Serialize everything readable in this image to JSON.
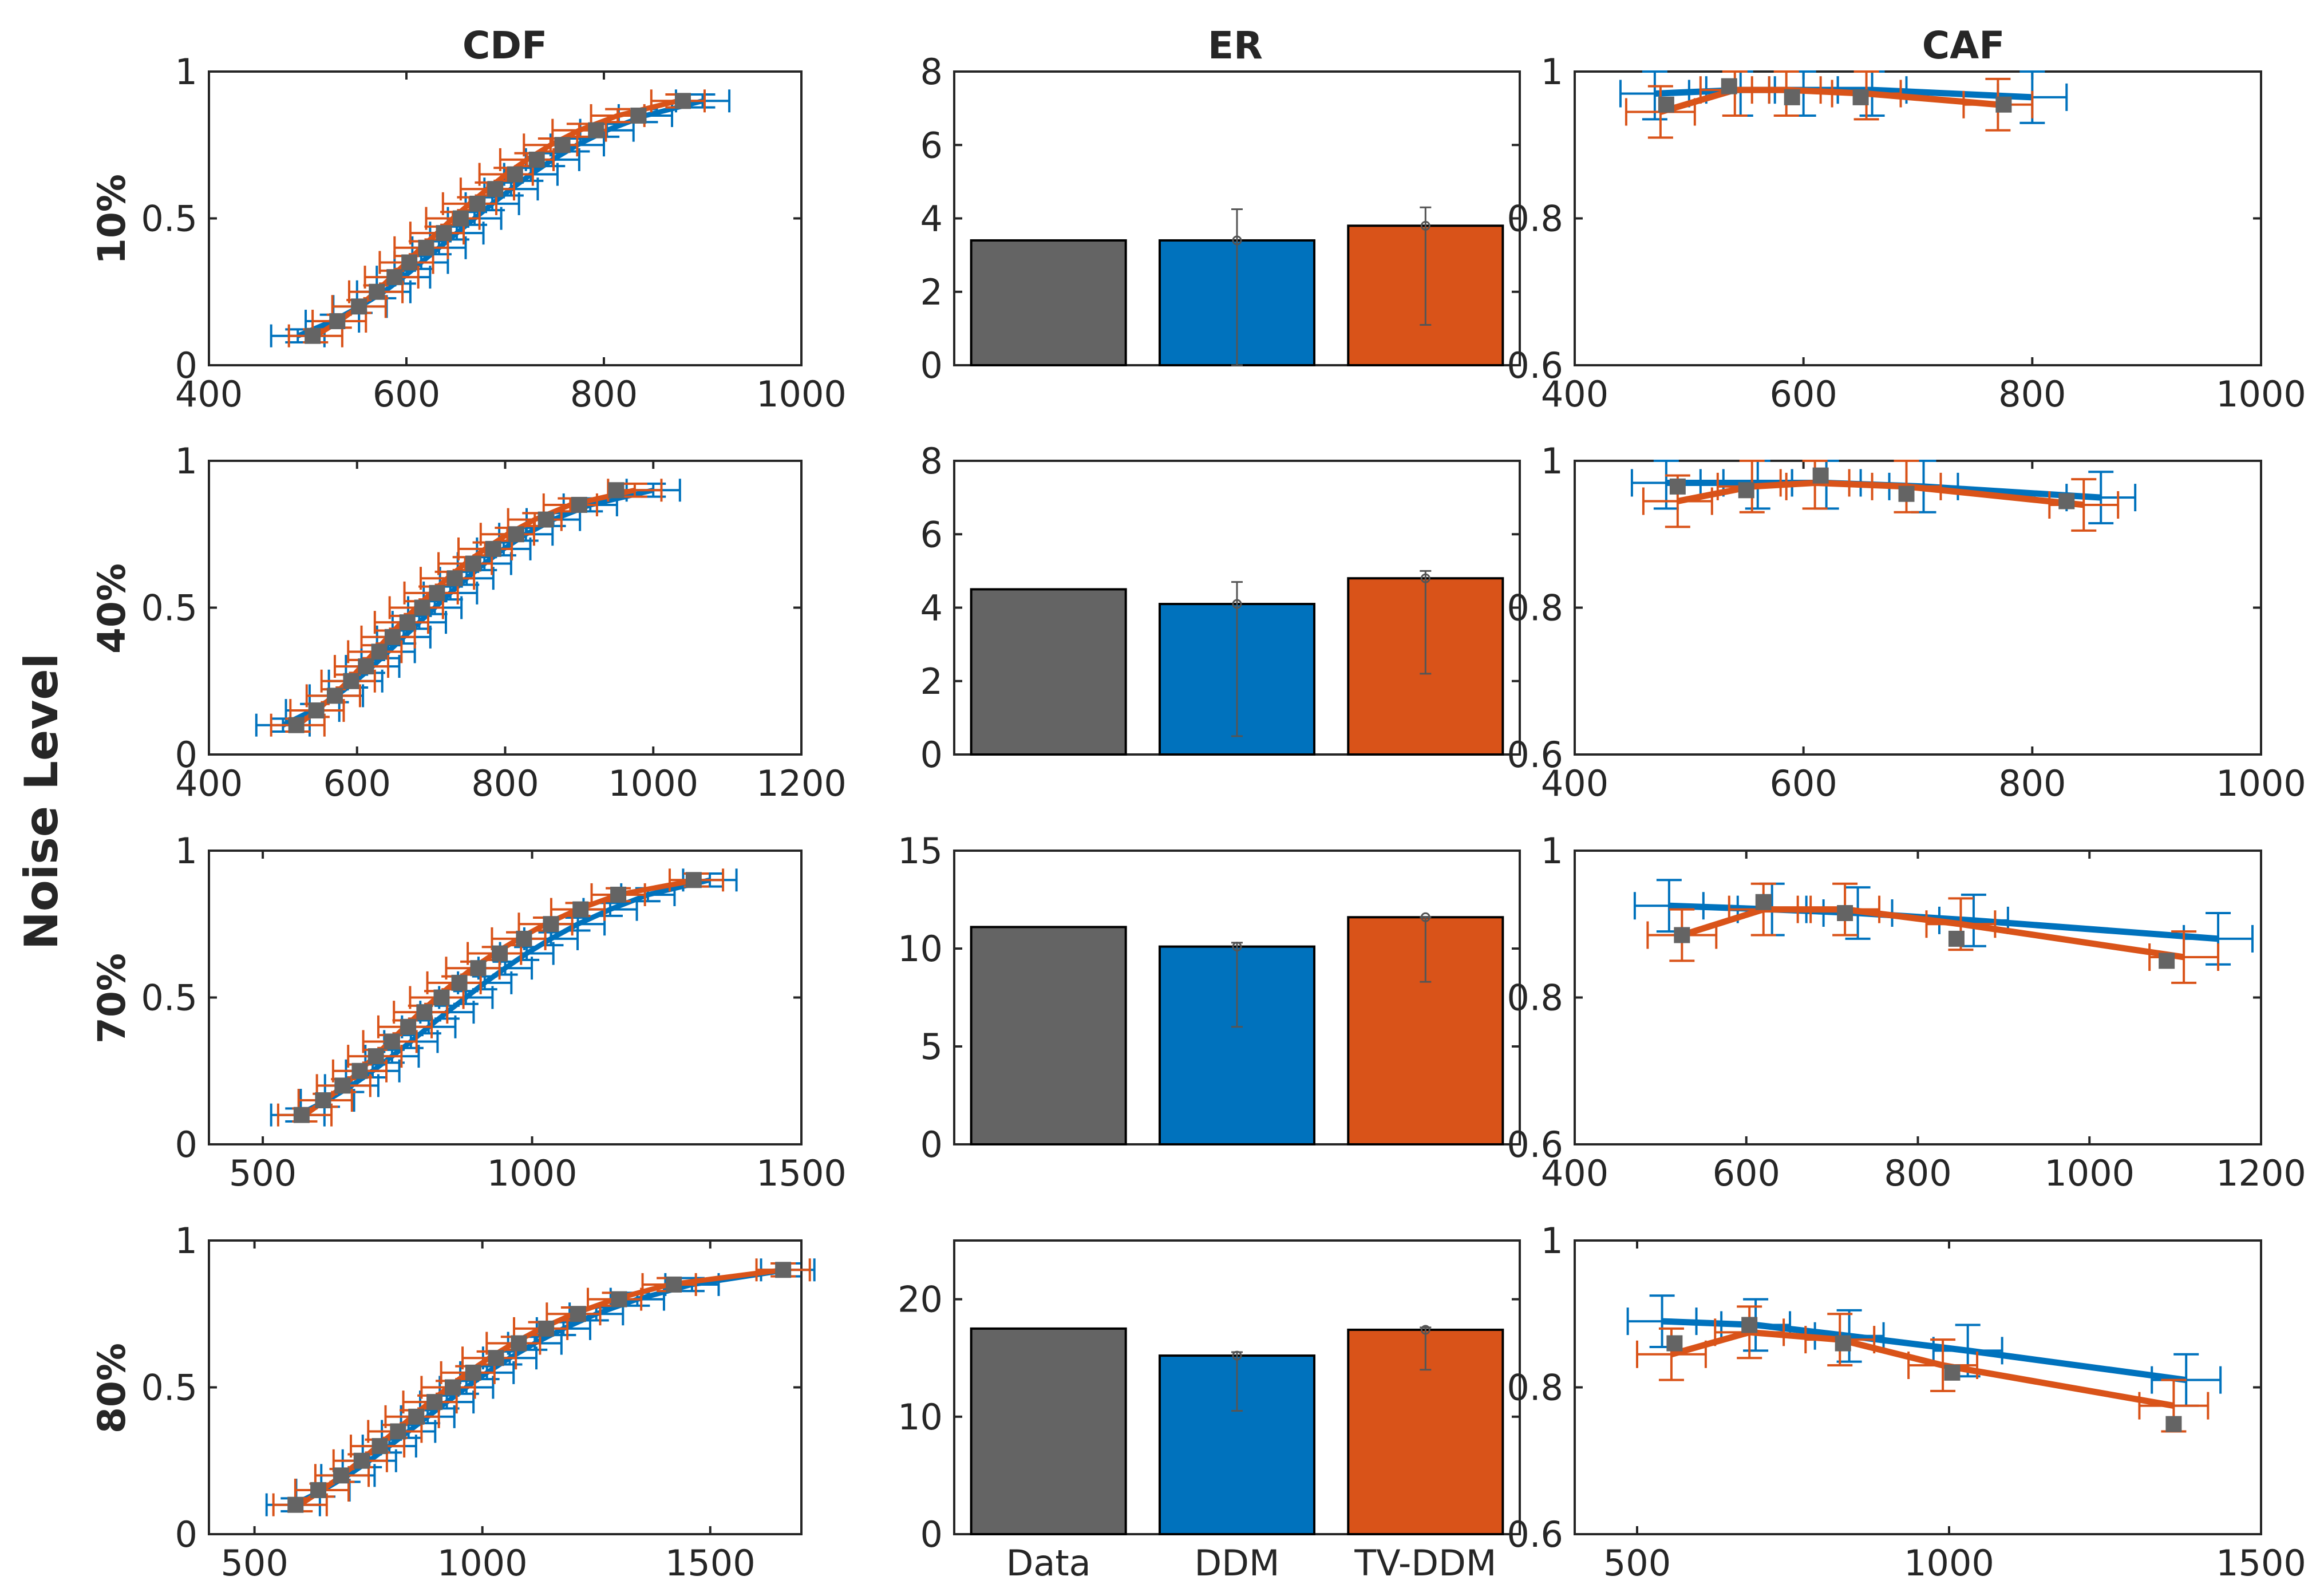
{
  "figure": {
    "ylabel": "Noise Level",
    "col_titles": [
      "CDF",
      "ER",
      "CAF"
    ],
    "row_labels": [
      "10%",
      "40%",
      "70%",
      "80%"
    ],
    "colors": {
      "data": "#646464",
      "ddm": "#0072BD",
      "tvddm": "#D95319",
      "axis": "#262626"
    }
  },
  "chart_data": [
    {
      "panel": "cdf-10",
      "type": "line",
      "title": "CDF",
      "row_label": "10%",
      "xlim": [
        400,
        1000
      ],
      "xticks": [
        400,
        600,
        800,
        1000
      ],
      "ylim": [
        0,
        1
      ],
      "yticks": [
        0,
        0.5,
        1
      ],
      "ytick_labels": [
        "0",
        "0.5",
        "1"
      ],
      "series": [
        {
          "name": "Data",
          "x": [
            505,
            530,
            552,
            570,
            588,
            603,
            620,
            638,
            655,
            672,
            690,
            710,
            732,
            758,
            792,
            835,
            880
          ],
          "y": [
            0.1,
            0.15,
            0.2,
            0.25,
            0.3,
            0.35,
            0.4,
            0.45,
            0.5,
            0.55,
            0.6,
            0.65,
            0.7,
            0.75,
            0.8,
            0.85,
            0.9
          ]
        },
        {
          "name": "DDM",
          "x": [
            490,
            525,
            553,
            577,
            597,
            615,
            633,
            651,
            669,
            687,
            706,
            726,
            748,
            773,
            803,
            842,
            900
          ],
          "y": [
            0.1,
            0.15,
            0.2,
            0.25,
            0.3,
            0.35,
            0.4,
            0.45,
            0.5,
            0.55,
            0.6,
            0.65,
            0.7,
            0.75,
            0.8,
            0.85,
            0.9
          ]
        },
        {
          "name": "TV-DDM",
          "x": [
            508,
            532,
            552,
            569,
            585,
            600,
            615,
            631,
            647,
            664,
            682,
            701,
            722,
            746,
            775,
            814,
            875
          ],
          "y": [
            0.1,
            0.15,
            0.2,
            0.25,
            0.3,
            0.35,
            0.4,
            0.45,
            0.5,
            0.55,
            0.6,
            0.65,
            0.7,
            0.75,
            0.8,
            0.85,
            0.9
          ]
        }
      ]
    },
    {
      "panel": "er-10",
      "type": "bar",
      "title": "ER",
      "row_label": "10%",
      "ylim": [
        0,
        8
      ],
      "yticks": [
        0,
        2,
        4,
        6,
        8
      ],
      "categories": [
        "Data",
        "DDM",
        "TV-DDM"
      ],
      "values": [
        3.4,
        3.4,
        3.8
      ],
      "error_low": [
        null,
        0.0,
        1.1
      ],
      "error_high": [
        null,
        4.25,
        4.3
      ]
    },
    {
      "panel": "caf-10",
      "type": "line",
      "title": "CAF",
      "row_label": "10%",
      "xlim": [
        400,
        1000
      ],
      "xticks": [
        400,
        600,
        800,
        1000
      ],
      "ylim": [
        0.6,
        1
      ],
      "yticks": [
        0.6,
        0.8,
        1
      ],
      "ytick_labels": [
        "0.6",
        "0.8",
        "1"
      ],
      "series": [
        {
          "name": "Data",
          "x": [
            480,
            535,
            590,
            650,
            775
          ],
          "y": [
            0.955,
            0.98,
            0.965,
            0.965,
            0.955
          ]
        },
        {
          "name": "DDM",
          "x": [
            470,
            545,
            600,
            660,
            800
          ],
          "y": [
            0.97,
            0.975,
            0.975,
            0.975,
            0.965
          ]
        },
        {
          "name": "TV-DDM",
          "x": [
            475,
            540,
            585,
            655,
            770
          ],
          "y": [
            0.945,
            0.975,
            0.975,
            0.97,
            0.955
          ]
        }
      ]
    },
    {
      "panel": "cdf-40",
      "type": "line",
      "title": "CDF",
      "row_label": "40%",
      "xlim": [
        400,
        1200
      ],
      "xticks": [
        400,
        600,
        800,
        1000,
        1200
      ],
      "ylim": [
        0,
        1
      ],
      "yticks": [
        0,
        0.5,
        1
      ],
      "ytick_labels": [
        "0",
        "0.5",
        "1"
      ],
      "series": [
        {
          "name": "Data",
          "x": [
            518,
            545,
            570,
            592,
            612,
            630,
            648,
            668,
            688,
            708,
            732,
            757,
            784,
            815,
            855,
            900,
            950
          ],
          "y": [
            0.1,
            0.15,
            0.2,
            0.25,
            0.3,
            0.35,
            0.4,
            0.45,
            0.5,
            0.55,
            0.6,
            0.65,
            0.7,
            0.75,
            0.8,
            0.85,
            0.9
          ]
        },
        {
          "name": "DDM",
          "x": [
            500,
            540,
            572,
            598,
            621,
            642,
            663,
            684,
            705,
            726,
            748,
            772,
            798,
            828,
            865,
            915,
            1000
          ],
          "y": [
            0.1,
            0.15,
            0.2,
            0.25,
            0.3,
            0.35,
            0.4,
            0.45,
            0.5,
            0.55,
            0.6,
            0.65,
            0.7,
            0.75,
            0.8,
            0.85,
            0.9
          ]
        },
        {
          "name": "TV-DDM",
          "x": [
            520,
            546,
            568,
            588,
            606,
            624,
            642,
            660,
            680,
            700,
            722,
            746,
            773,
            803,
            840,
            888,
            975
          ],
          "y": [
            0.1,
            0.15,
            0.2,
            0.25,
            0.3,
            0.35,
            0.4,
            0.45,
            0.5,
            0.55,
            0.6,
            0.65,
            0.7,
            0.75,
            0.8,
            0.85,
            0.9
          ]
        }
      ]
    },
    {
      "panel": "er-40",
      "type": "bar",
      "title": "ER",
      "row_label": "40%",
      "ylim": [
        0,
        8
      ],
      "yticks": [
        0,
        2,
        4,
        6,
        8
      ],
      "categories": [
        "Data",
        "DDM",
        "TV-DDM"
      ],
      "values": [
        4.5,
        4.1,
        4.8
      ],
      "error_low": [
        null,
        0.5,
        2.2
      ],
      "error_high": [
        null,
        4.7,
        5.0
      ]
    },
    {
      "panel": "caf-40",
      "type": "line",
      "title": "CAF",
      "row_label": "40%",
      "xlim": [
        400,
        1000
      ],
      "xticks": [
        400,
        600,
        800,
        1000
      ],
      "ylim": [
        0.6,
        1
      ],
      "yticks": [
        0.6,
        0.8,
        1
      ],
      "ytick_labels": [
        "0.6",
        "0.8",
        "1"
      ],
      "series": [
        {
          "name": "Data",
          "x": [
            490,
            550,
            615,
            690,
            830
          ],
          "y": [
            0.965,
            0.96,
            0.98,
            0.955,
            0.945
          ]
        },
        {
          "name": "DDM",
          "x": [
            480,
            560,
            620,
            705,
            860
          ],
          "y": [
            0.97,
            0.97,
            0.97,
            0.965,
            0.95
          ]
        },
        {
          "name": "TV-DDM",
          "x": [
            490,
            555,
            610,
            690,
            845
          ],
          "y": [
            0.945,
            0.965,
            0.97,
            0.965,
            0.94
          ]
        }
      ]
    },
    {
      "panel": "cdf-70",
      "type": "line",
      "title": "CDF",
      "row_label": "70%",
      "xlim": [
        400,
        1500
      ],
      "xticks": [
        500,
        1000,
        1500
      ],
      "ylim": [
        0,
        1
      ],
      "yticks": [
        0,
        0.5,
        1
      ],
      "ytick_labels": [
        "0",
        "0.5",
        "1"
      ],
      "series": [
        {
          "name": "Data",
          "x": [
            572,
            612,
            648,
            680,
            710,
            740,
            770,
            800,
            832,
            865,
            900,
            940,
            985,
            1035,
            1090,
            1160,
            1300
          ],
          "y": [
            0.1,
            0.15,
            0.2,
            0.25,
            0.3,
            0.35,
            0.4,
            0.45,
            0.5,
            0.55,
            0.6,
            0.65,
            0.7,
            0.75,
            0.8,
            0.85,
            0.9
          ]
        },
        {
          "name": "DDM",
          "x": [
            565,
            620,
            665,
            704,
            740,
            775,
            808,
            842,
            877,
            912,
            950,
            990,
            1035,
            1085,
            1145,
            1215,
            1330
          ],
          "y": [
            0.1,
            0.15,
            0.2,
            0.25,
            0.3,
            0.35,
            0.4,
            0.45,
            0.5,
            0.55,
            0.6,
            0.65,
            0.7,
            0.75,
            0.8,
            0.85,
            0.9
          ]
        },
        {
          "name": "TV-DDM",
          "x": [
            578,
            616,
            650,
            680,
            708,
            736,
            764,
            793,
            823,
            855,
            890,
            930,
            975,
            1025,
            1085,
            1160,
            1305
          ],
          "y": [
            0.1,
            0.15,
            0.2,
            0.25,
            0.3,
            0.35,
            0.4,
            0.45,
            0.5,
            0.55,
            0.6,
            0.65,
            0.7,
            0.75,
            0.8,
            0.85,
            0.9
          ]
        }
      ]
    },
    {
      "panel": "er-70",
      "type": "bar",
      "title": "ER",
      "row_label": "70%",
      "ylim": [
        0,
        15
      ],
      "yticks": [
        0,
        5,
        10,
        15
      ],
      "categories": [
        "Data",
        "DDM",
        "TV-DDM"
      ],
      "values": [
        11.1,
        10.1,
        11.6
      ],
      "error_low": [
        null,
        6.0,
        8.3
      ],
      "error_high": [
        null,
        10.3,
        11.6
      ]
    },
    {
      "panel": "caf-70",
      "type": "line",
      "title": "CAF",
      "row_label": "70%",
      "xlim": [
        400,
        1200
      ],
      "xticks": [
        400,
        600,
        800,
        1000,
        1200
      ],
      "ylim": [
        0.6,
        1
      ],
      "yticks": [
        0.6,
        0.8,
        1
      ],
      "ytick_labels": [
        "0.6",
        "0.8",
        "1"
      ],
      "series": [
        {
          "name": "Data",
          "x": [
            525,
            620,
            715,
            845,
            1090
          ],
          "y": [
            0.885,
            0.93,
            0.915,
            0.88,
            0.85
          ]
        },
        {
          "name": "DDM",
          "x": [
            510,
            630,
            730,
            865,
            1150
          ],
          "y": [
            0.925,
            0.92,
            0.915,
            0.905,
            0.88
          ]
        },
        {
          "name": "TV-DDM",
          "x": [
            525,
            620,
            715,
            850,
            1110
          ],
          "y": [
            0.885,
            0.92,
            0.92,
            0.9,
            0.855
          ]
        }
      ]
    },
    {
      "panel": "cdf-80",
      "type": "line",
      "title": "CDF",
      "row_label": "80%",
      "xlim": [
        400,
        1700
      ],
      "xticks": [
        500,
        1000,
        1500
      ],
      "ylim": [
        0,
        1
      ],
      "yticks": [
        0,
        0.5,
        1
      ],
      "ytick_labels": [
        "0",
        "0.5",
        "1"
      ],
      "series": [
        {
          "name": "Data",
          "x": [
            590,
            640,
            690,
            735,
            775,
            815,
            855,
            895,
            935,
            980,
            1030,
            1080,
            1140,
            1210,
            1300,
            1420,
            1660
          ],
          "y": [
            0.1,
            0.15,
            0.2,
            0.25,
            0.3,
            0.35,
            0.4,
            0.45,
            0.5,
            0.55,
            0.6,
            0.65,
            0.7,
            0.75,
            0.8,
            0.85,
            0.9
          ]
        },
        {
          "name": "DDM",
          "x": [
            585,
            650,
            705,
            752,
            796,
            838,
            880,
            922,
            965,
            1010,
            1060,
            1115,
            1178,
            1250,
            1340,
            1460,
            1670
          ],
          "y": [
            0.1,
            0.15,
            0.2,
            0.25,
            0.3,
            0.35,
            0.4,
            0.45,
            0.5,
            0.55,
            0.6,
            0.65,
            0.7,
            0.75,
            0.8,
            0.85,
            0.9
          ]
        },
        {
          "name": "TV-DDM",
          "x": [
            600,
            648,
            692,
            732,
            770,
            808,
            846,
            885,
            925,
            968,
            1015,
            1068,
            1128,
            1200,
            1290,
            1410,
            1660
          ],
          "y": [
            0.1,
            0.15,
            0.2,
            0.25,
            0.3,
            0.35,
            0.4,
            0.45,
            0.5,
            0.55,
            0.6,
            0.65,
            0.7,
            0.75,
            0.8,
            0.85,
            0.9
          ]
        }
      ]
    },
    {
      "panel": "er-80",
      "type": "bar",
      "title": "ER",
      "row_label": "80%",
      "ylim": [
        0,
        25
      ],
      "yticks": [
        0,
        10,
        20
      ],
      "categories": [
        "Data",
        "DDM",
        "TV-DDM"
      ],
      "values": [
        17.5,
        15.2,
        17.4
      ],
      "error_low": [
        null,
        10.5,
        14.0
      ],
      "error_high": [
        null,
        15.5,
        17.6
      ]
    },
    {
      "panel": "caf-80",
      "type": "line",
      "title": "CAF",
      "row_label": "80%",
      "xlim": [
        400,
        1500
      ],
      "xticks": [
        500,
        1000,
        1500
      ],
      "ylim": [
        0.6,
        1
      ],
      "yticks": [
        0.6,
        0.8,
        1
      ],
      "ytick_labels": [
        "0.6",
        "0.8",
        "1"
      ],
      "series": [
        {
          "name": "Data",
          "x": [
            560,
            680,
            830,
            1005,
            1360
          ],
          "y": [
            0.86,
            0.885,
            0.86,
            0.82,
            0.75
          ]
        },
        {
          "name": "DDM",
          "x": [
            540,
            690,
            840,
            1030,
            1380
          ],
          "y": [
            0.89,
            0.885,
            0.87,
            0.85,
            0.81
          ]
        },
        {
          "name": "TV-DDM",
          "x": [
            555,
            680,
            825,
            990,
            1360
          ],
          "y": [
            0.845,
            0.875,
            0.865,
            0.83,
            0.775
          ]
        }
      ]
    }
  ]
}
